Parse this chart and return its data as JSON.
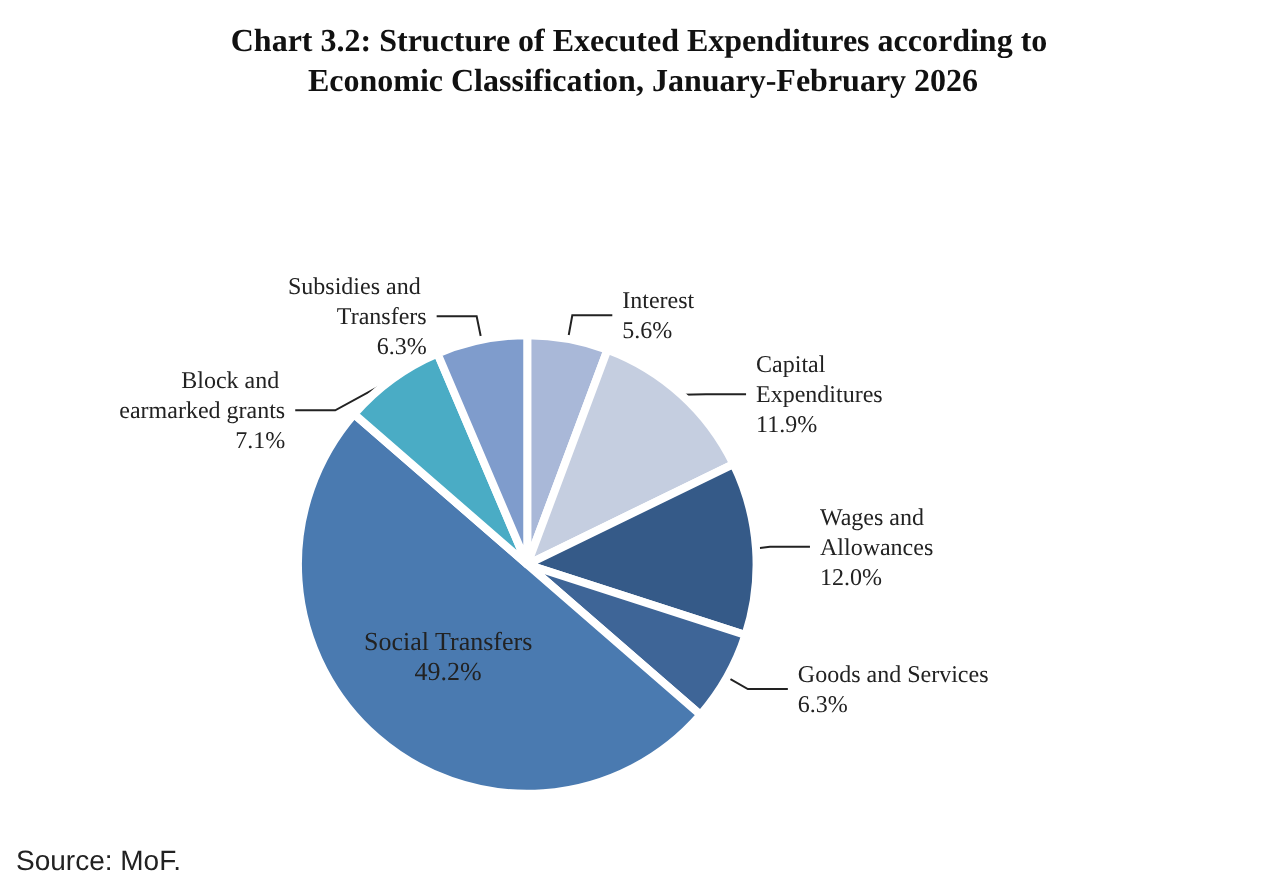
{
  "chart_data": {
    "type": "pie",
    "title": "Chart 3.2: Structure of Executed Expenditures according to Economic Classification, January-February 2026",
    "categories": [
      "Interest",
      "Capital Expenditures",
      "Wages and Allowances",
      "Goods and Services",
      "Social Transfers",
      "Block and earmarked grants",
      "Subsidies and Transfers"
    ],
    "values": [
      5.6,
      11.9,
      12.0,
      6.3,
      49.2,
      7.1,
      6.3
    ],
    "colors": [
      "#a9b8d8",
      "#c5cee0",
      "#355a88",
      "#3e6597",
      "#4a7ab0",
      "#4aacc5",
      "#7f9ccc"
    ],
    "value_labels": [
      "5.6%",
      "11.9%",
      "12.0%",
      "6.3%",
      "49.2%",
      "7.1%",
      "6.3%"
    ],
    "legend": false,
    "annotations": [
      "Source: MoF."
    ]
  }
}
